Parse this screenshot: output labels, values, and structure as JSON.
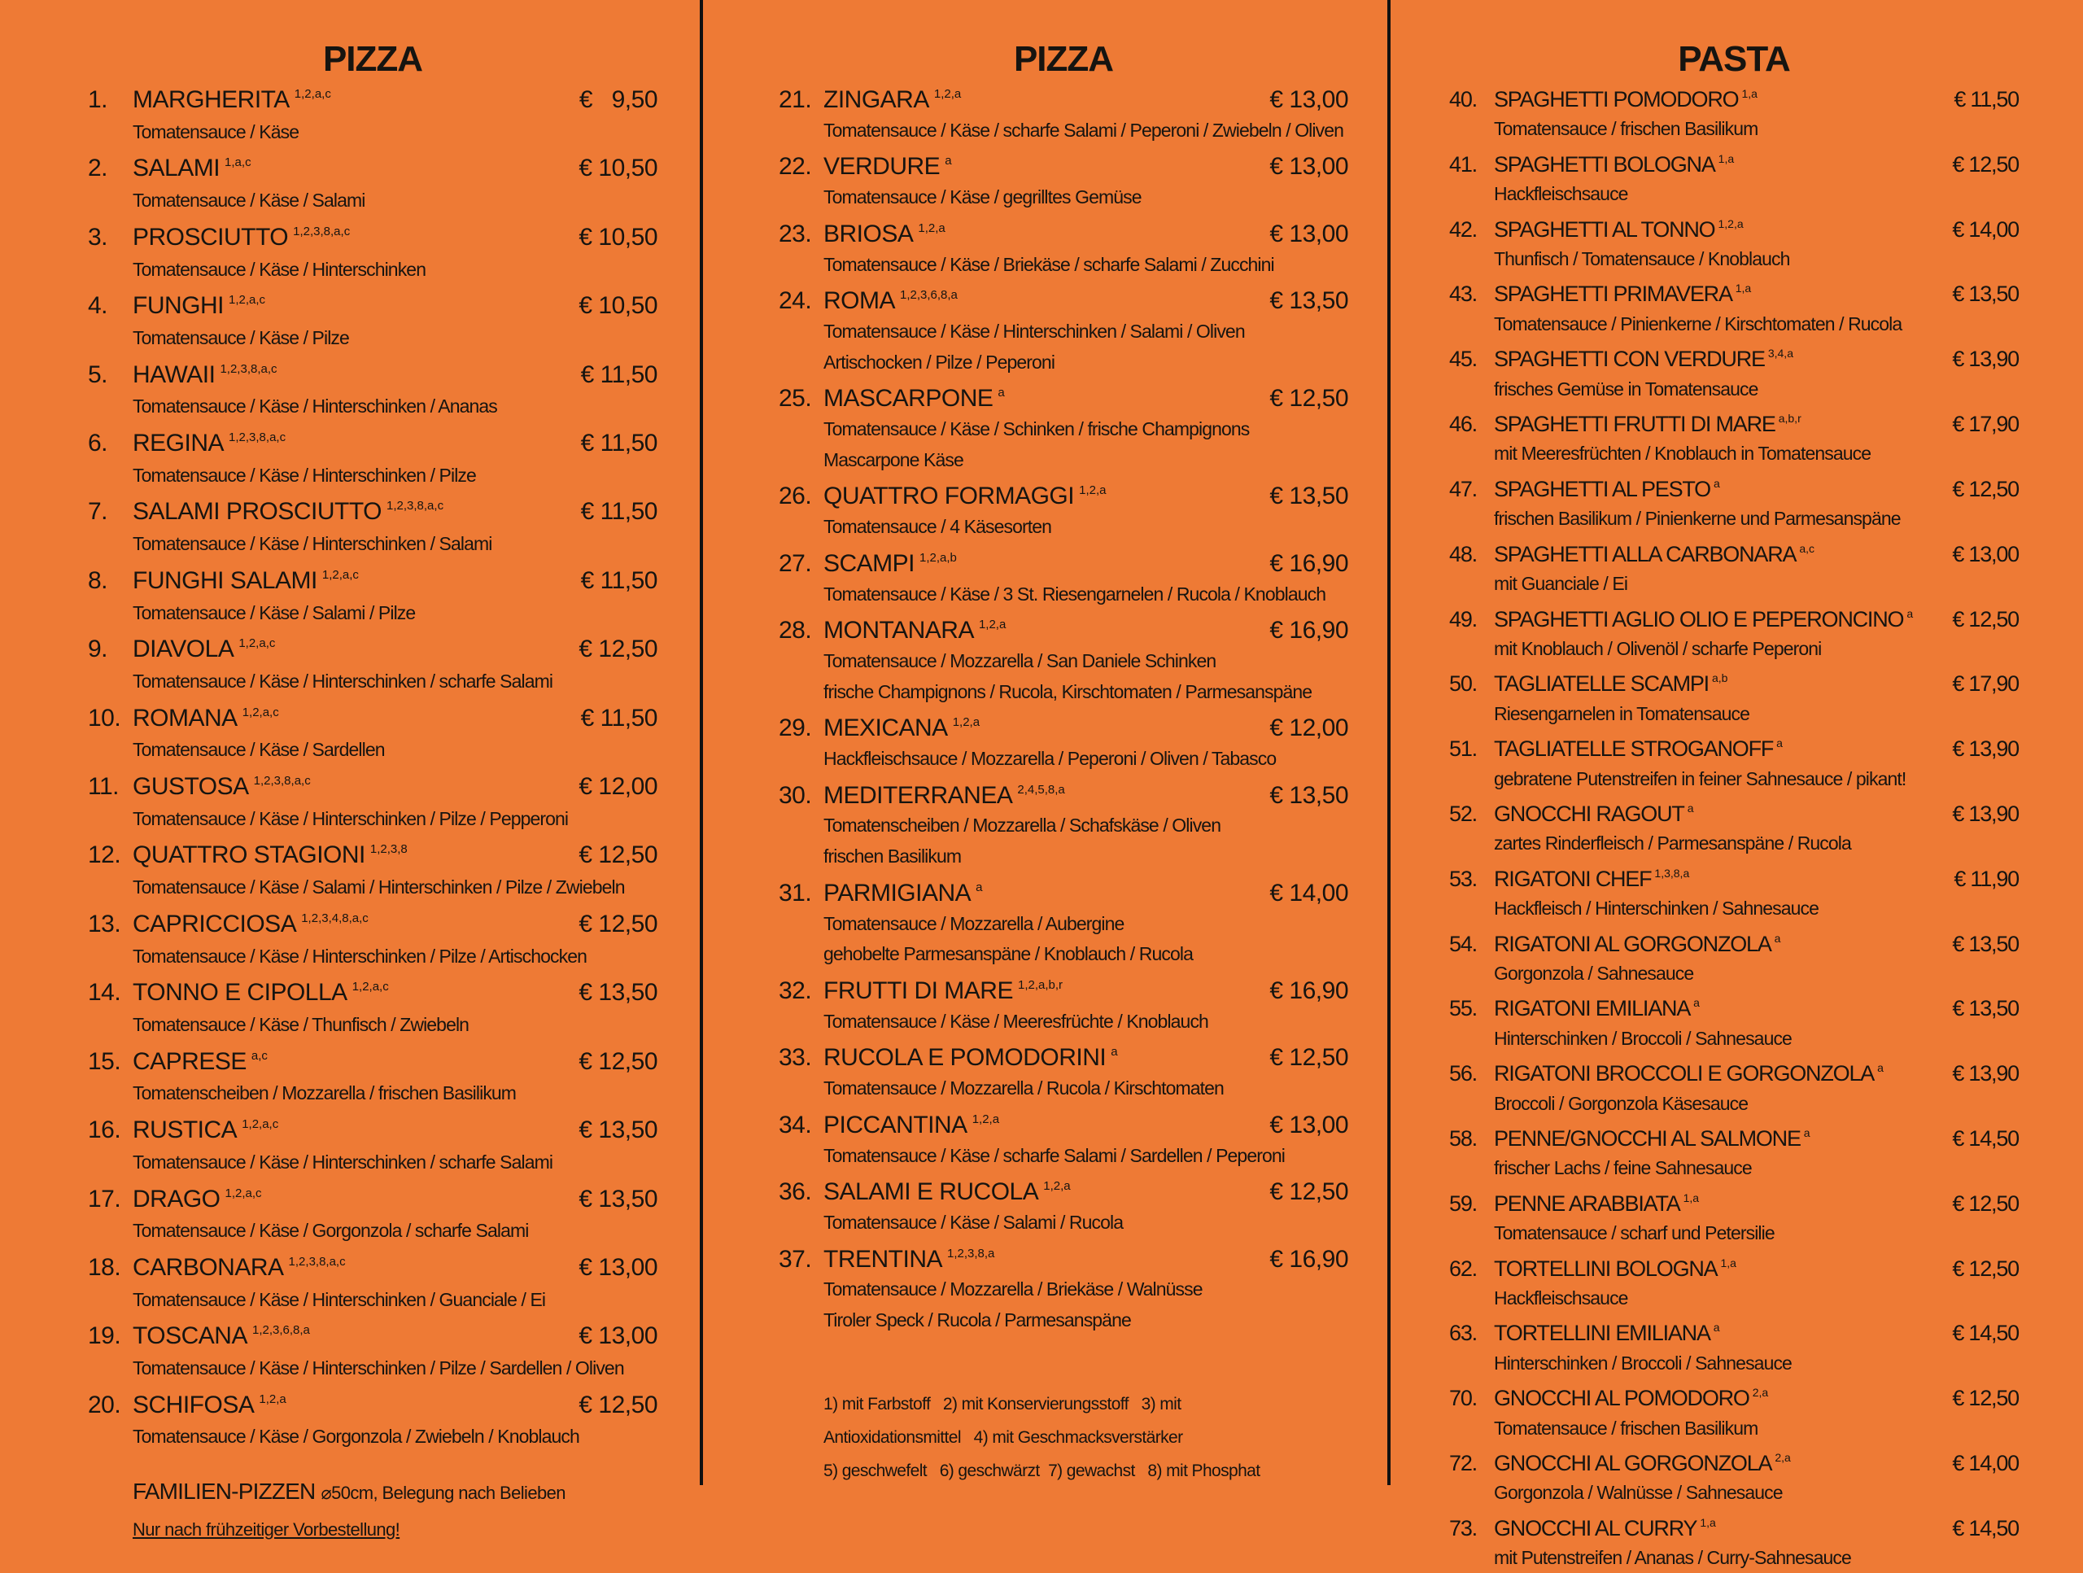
{
  "colors": {
    "background": "#ee7a35",
    "text": "#161410",
    "divider": "#111111"
  },
  "columns": [
    {
      "title": "PIZZA",
      "items": [
        {
          "num": "1.",
          "name": "MARGHERITA",
          "sup": "1,2,a,c",
          "price": "€   9,50",
          "desc": [
            "Tomatensauce / Käse"
          ]
        },
        {
          "num": "2.",
          "name": "SALAMI",
          "sup": "1,a,c",
          "price": "€ 10,50",
          "desc": [
            "Tomatensauce / Käse / Salami"
          ]
        },
        {
          "num": "3.",
          "name": "PROSCIUTTO",
          "sup": "1,2,3,8,a,c",
          "price": "€ 10,50",
          "desc": [
            "Tomatensauce / Käse / Hinterschinken"
          ]
        },
        {
          "num": "4.",
          "name": "FUNGHI",
          "sup": "1,2,a,c",
          "price": "€ 10,50",
          "desc": [
            "Tomatensauce / Käse / Pilze"
          ]
        },
        {
          "num": "5.",
          "name": "HAWAII",
          "sup": "1,2,3,8,a,c",
          "price": "€ 11,50",
          "desc": [
            "Tomatensauce / Käse / Hinterschinken / Ananas"
          ]
        },
        {
          "num": "6.",
          "name": "REGINA",
          "sup": "1,2,3,8,a,c",
          "price": "€ 11,50",
          "desc": [
            "Tomatensauce / Käse / Hinterschinken / Pilze"
          ]
        },
        {
          "num": "7.",
          "name": "SALAMI PROSCIUTTO",
          "sup": "1,2,3,8,a,c",
          "price": "€ 11,50",
          "desc": [
            "Tomatensauce / Käse / Hinterschinken / Salami"
          ]
        },
        {
          "num": "8.",
          "name": "FUNGHI SALAMI",
          "sup": "1,2,a,c",
          "price": "€ 11,50",
          "desc": [
            "Tomatensauce / Käse / Salami / Pilze"
          ]
        },
        {
          "num": "9.",
          "name": "DIAVOLA",
          "sup": "1,2,a,c",
          "price": "€ 12,50",
          "desc": [
            "Tomatensauce / Käse / Hinterschinken / scharfe Salami"
          ]
        },
        {
          "num": "10.",
          "name": "ROMANA",
          "sup": "1,2,a,c",
          "price": "€ 11,50",
          "desc": [
            "Tomatensauce / Käse / Sardellen"
          ]
        },
        {
          "num": "11.",
          "name": "GUSTOSA",
          "sup": "1,2,3,8,a,c",
          "price": "€ 12,00",
          "desc": [
            "Tomatensauce / Käse / Hinterschinken / Pilze / Pepperoni"
          ]
        },
        {
          "num": "12.",
          "name": "QUATTRO STAGIONI",
          "sup": "1,2,3,8",
          "price": "€ 12,50",
          "desc": [
            "Tomatensauce / Käse / Salami / Hinterschinken / Pilze / Zwiebeln"
          ]
        },
        {
          "num": "13.",
          "name": "CAPRICCIOSA",
          "sup": "1,2,3,4,8,a,c",
          "price": "€ 12,50",
          "desc": [
            "Tomatensauce / Käse / Hinterschinken / Pilze / Artischocken"
          ]
        },
        {
          "num": "14.",
          "name": "TONNO E CIPOLLA",
          "sup": "1,2,a,c",
          "price": "€ 13,50",
          "desc": [
            "Tomatensauce / Käse / Thunfisch / Zwiebeln"
          ]
        },
        {
          "num": "15.",
          "name": "CAPRESE",
          "sup": "a,c",
          "price": "€ 12,50",
          "desc": [
            "Tomatenscheiben / Mozzarella / frischen Basilikum"
          ]
        },
        {
          "num": "16.",
          "name": "RUSTICA",
          "sup": "1,2,a,c",
          "price": "€ 13,50",
          "desc": [
            "Tomatensauce / Käse / Hinterschinken / scharfe Salami"
          ]
        },
        {
          "num": "17.",
          "name": "DRAGO",
          "sup": "1,2,a,c",
          "price": "€ 13,50",
          "desc": [
            "Tomatensauce / Käse / Gorgonzola / scharfe Salami"
          ]
        },
        {
          "num": "18.",
          "name": "CARBONARA",
          "sup": "1,2,3,8,a,c",
          "price": "€ 13,00",
          "desc": [
            "Tomatensauce / Käse / Hinterschinken / Guanciale / Ei"
          ]
        },
        {
          "num": "19.",
          "name": "TOSCANA",
          "sup": "1,2,3,6,8,a",
          "price": "€ 13,00",
          "desc": [
            "Tomatensauce / Käse / Hinterschinken / Pilze / Sardellen / Oliven"
          ]
        },
        {
          "num": "20.",
          "name": "SCHIFOSA",
          "sup": "1,2,a",
          "price": "€ 12,50",
          "desc": [
            "Tomatensauce / Käse / Gorgonzola / Zwiebeln / Knoblauch"
          ]
        }
      ],
      "family": {
        "label": "FAMILIEN-PIZZEN",
        "detail": "⌀50cm, Belegung nach Belieben",
        "note": "Nur nach frühzeitiger Vorbestellung!"
      }
    },
    {
      "title": "PIZZA",
      "items": [
        {
          "num": "21.",
          "name": "ZINGARA",
          "sup": "1,2,a",
          "price": "€ 13,00",
          "desc": [
            "Tomatensauce / Käse / scharfe Salami / Peperoni / Zwiebeln / Oliven"
          ]
        },
        {
          "num": "22.",
          "name": "VERDURE",
          "sup": "a",
          "price": "€ 13,00",
          "desc": [
            "Tomatensauce / Käse / gegrilltes Gemüse"
          ]
        },
        {
          "num": "23.",
          "name": "BRIOSA",
          "sup": "1,2,a",
          "price": "€ 13,00",
          "desc": [
            "Tomatensauce / Käse / Briekäse / scharfe Salami / Zucchini"
          ]
        },
        {
          "num": "24.",
          "name": "ROMA",
          "sup": "1,2,3,6,8,a",
          "price": "€ 13,50",
          "desc": [
            "Tomatensauce / Käse / Hinterschinken / Salami / Oliven",
            "Artischocken / Pilze / Peperoni"
          ]
        },
        {
          "num": "25.",
          "name": "MASCARPONE",
          "sup": "a",
          "price": "€ 12,50",
          "desc": [
            "Tomatensauce / Käse / Schinken / frische Champignons",
            "Mascarpone Käse"
          ]
        },
        {
          "num": "26.",
          "name": "QUATTRO FORMAGGI",
          "sup": "1,2,a",
          "price": "€ 13,50",
          "desc": [
            "Tomatensauce / 4 Käsesorten"
          ]
        },
        {
          "num": "27.",
          "name": "SCAMPI",
          "sup": "1,2,a,b",
          "price": "€ 16,90",
          "desc": [
            "Tomatensauce / Käse / 3 St. Riesengarnelen / Rucola / Knoblauch"
          ]
        },
        {
          "num": "28.",
          "name": "MONTANARA",
          "sup": "1,2,a",
          "price": "€ 16,90",
          "desc": [
            "Tomatensauce / Mozzarella / San Daniele Schinken",
            "frische Champignons / Rucola, Kirschtomaten / Parmesanspäne"
          ]
        },
        {
          "num": "29.",
          "name": "MEXICANA",
          "sup": "1,2,a",
          "price": "€ 12,00",
          "desc": [
            "Hackfleischsauce / Mozzarella / Peperoni / Oliven / Tabasco"
          ]
        },
        {
          "num": "30.",
          "name": "MEDITERRANEA",
          "sup": "2,4,5,8,a",
          "price": "€ 13,50",
          "desc": [
            "Tomatenscheiben / Mozzarella / Schafskäse / Oliven",
            "frischen Basilikum"
          ]
        },
        {
          "num": "31.",
          "name": "PARMIGIANA",
          "sup": "a",
          "price": "€ 14,00",
          "desc": [
            "Tomatensauce / Mozzarella / Aubergine",
            "gehobelte Parmesanspäne / Knoblauch / Rucola"
          ]
        },
        {
          "num": "32.",
          "name": "FRUTTI DI MARE",
          "sup": "1,2,a,b,r",
          "price": "€ 16,90",
          "desc": [
            "Tomatensauce / Käse / Meeresfrüchte / Knoblauch"
          ]
        },
        {
          "num": "33.",
          "name": "RUCOLA E POMODORINI",
          "sup": "a",
          "price": "€ 12,50",
          "desc": [
            "Tomatensauce / Mozzarella / Rucola / Kirschtomaten"
          ]
        },
        {
          "num": "34.",
          "name": "PICCANTINA",
          "sup": "1,2,a",
          "price": "€ 13,00",
          "desc": [
            "Tomatensauce / Käse / scharfe Salami / Sardellen / Peperoni"
          ]
        },
        {
          "num": "36.",
          "name": "SALAMI E RUCOLA",
          "sup": "1,2,a",
          "price": "€ 12,50",
          "desc": [
            "Tomatensauce / Käse / Salami / Rucola"
          ]
        },
        {
          "num": "37.",
          "name": "TRENTINA",
          "sup": "1,2,3,8,a",
          "price": "€ 16,90",
          "desc": [
            "Tomatensauce / Mozzarella / Briekäse / Walnüsse",
            "Tiroler Speck / Rucola / Parmesanspäne"
          ]
        }
      ],
      "footnotes": [
        "1) mit Farbstoff   2) mit Konservierungsstoff   3) mit",
        "Antioxidationsmittel   4) mit Geschmacksverstärker",
        "5) geschwefelt   6) geschwärzt  7) gewachst   8) mit Phosphat"
      ]
    },
    {
      "title": "PASTA",
      "items": [
        {
          "num": "40.",
          "name": "SPAGHETTI POMODORO",
          "sup": "1,a",
          "price": "€ 11,50",
          "desc": [
            "Tomatensauce / frischen Basilikum"
          ]
        },
        {
          "num": "41.",
          "name": "SPAGHETTI BOLOGNA",
          "sup": "1,a",
          "price": "€ 12,50",
          "desc": [
            "Hackfleischsauce"
          ]
        },
        {
          "num": "42.",
          "name": "SPAGHETTI AL TONNO",
          "sup": "1,2,a",
          "price": "€ 14,00",
          "desc": [
            "Thunfisch / Tomatensauce / Knoblauch"
          ]
        },
        {
          "num": "43.",
          "name": "SPAGHETTI PRIMAVERA",
          "sup": "1,a",
          "price": "€ 13,50",
          "desc": [
            "Tomatensauce / Pinienkerne / Kirschtomaten / Rucola"
          ]
        },
        {
          "num": "45.",
          "name": "SPAGHETTI CON VERDURE",
          "sup": "3,4,a",
          "price": "€ 13,90",
          "desc": [
            "frisches Gemüse in Tomatensauce"
          ]
        },
        {
          "num": "46.",
          "name": "SPAGHETTI FRUTTI DI MARE",
          "sup": "a,b,r",
          "price": "€ 17,90",
          "desc": [
            "mit Meeresfrüchten / Knoblauch in Tomatensauce"
          ]
        },
        {
          "num": "47.",
          "name": "SPAGHETTI AL PESTO",
          "sup": "a",
          "price": "€ 12,50",
          "desc": [
            "frischen Basilikum / Pinienkerne und Parmesanspäne"
          ]
        },
        {
          "num": "48.",
          "name": "SPAGHETTI ALLA CARBONARA",
          "sup": "a,c",
          "price": "€ 13,00",
          "desc": [
            "mit Guanciale / Ei"
          ]
        },
        {
          "num": "49.",
          "name": "SPAGHETTI AGLIO OLIO E PEPERONCINO",
          "sup": "a",
          "price": "€ 12,50",
          "desc": [
            "mit Knoblauch / Olivenöl / scharfe Peperoni"
          ]
        },
        {
          "num": "50.",
          "name": "TAGLIATELLE SCAMPI",
          "sup": "a,b",
          "price": "€ 17,90",
          "desc": [
            "Riesengarnelen in Tomatensauce"
          ]
        },
        {
          "num": "51.",
          "name": "TAGLIATELLE STROGANOFF",
          "sup": "a",
          "price": "€ 13,90",
          "desc": [
            "gebratene Putenstreifen in feiner Sahnesauce / pikant!"
          ]
        },
        {
          "num": "52.",
          "name": "GNOCCHI RAGOUT",
          "sup": "a",
          "price": "€ 13,90",
          "desc": [
            "zartes Rinderfleisch / Parmesanspäne / Rucola"
          ]
        },
        {
          "num": "53.",
          "name": "RIGATONI CHEF",
          "sup": "1,3,8,a",
          "price": "€ 11,90",
          "desc": [
            "Hackfleisch / Hinterschinken / Sahnesauce"
          ]
        },
        {
          "num": "54.",
          "name": "RIGATONI AL GORGONZOLA",
          "sup": "a",
          "price": "€ 13,50",
          "desc": [
            "Gorgonzola / Sahnesauce"
          ]
        },
        {
          "num": "55.",
          "name": "RIGATONI EMILIANA",
          "sup": "a",
          "price": "€ 13,50",
          "desc": [
            "Hinterschinken / Broccoli / Sahnesauce"
          ]
        },
        {
          "num": "56.",
          "name": "RIGATONI BROCCOLI E GORGONZOLA",
          "sup": "a",
          "price": "€ 13,90",
          "desc": [
            "Broccoli / Gorgonzola Käsesauce"
          ]
        },
        {
          "num": "58.",
          "name": "PENNE/GNOCCHI AL SALMONE",
          "sup": "a",
          "price": "€ 14,50",
          "desc": [
            "frischer Lachs / feine Sahnesauce"
          ]
        },
        {
          "num": "59.",
          "name": "PENNE ARABBIATA",
          "sup": "1,a",
          "price": "€ 12,50",
          "desc": [
            "Tomatensauce / scharf und Petersilie"
          ]
        },
        {
          "num": "62.",
          "name": "TORTELLINI BOLOGNA",
          "sup": "1,a",
          "price": "€ 12,50",
          "desc": [
            "Hackfleischsauce"
          ]
        },
        {
          "num": "63.",
          "name": "TORTELLINI EMILIANA",
          "sup": "a",
          "price": "€ 14,50",
          "desc": [
            "Hinterschinken / Broccoli / Sahnesauce"
          ]
        },
        {
          "num": "70.",
          "name": "GNOCCHI AL POMODORO",
          "sup": "2,a",
          "price": "€ 12,50",
          "desc": [
            "Tomatensauce / frischen Basilikum"
          ]
        },
        {
          "num": "72.",
          "name": "GNOCCHI AL GORGONZOLA",
          "sup": "2,a",
          "price": "€ 14,00",
          "desc": [
            "Gorgonzola / Walnüsse / Sahnesauce"
          ]
        },
        {
          "num": "73.",
          "name": "GNOCCHI AL CURRY",
          "sup": "1,a",
          "price": "€ 14,50",
          "desc": [
            "mit Putenstreifen / Ananas / Curry-Sahnesauce"
          ]
        }
      ]
    }
  ]
}
